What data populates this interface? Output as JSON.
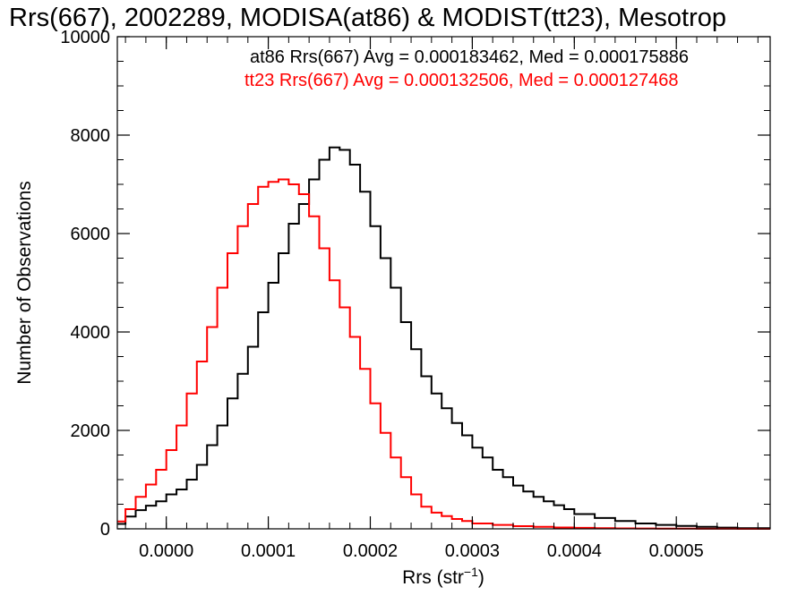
{
  "chart_data": {
    "type": "line",
    "title": "Rrs(667), 2002289, MODISA(at86) & MODIST(tt23), Mesotrop",
    "xlabel": "Rrs (str",
    "xlabel_sup": "−1",
    "xlabel_close": ")",
    "ylabel": "Number of Observations",
    "xlim": [
      -4.8e-05,
      0.000592
    ],
    "ylim": [
      0,
      10000
    ],
    "x_ticks": [
      0.0,
      0.0001,
      0.0002,
      0.0003,
      0.0004,
      0.0005
    ],
    "x_tick_labels": [
      "0.0000",
      "0.0001",
      "0.0002",
      "0.0003",
      "0.0004",
      "0.0005"
    ],
    "y_ticks": [
      0,
      2000,
      4000,
      6000,
      8000,
      10000
    ],
    "y_tick_labels": [
      "0",
      "2000",
      "4000",
      "6000",
      "8000",
      "10000"
    ],
    "grid": false,
    "legend": "top-right text annotations",
    "annotations": [
      {
        "text": "at86 Rrs(667) Avg = 0.000183462, Med = 0.000175886",
        "color": "#000000"
      },
      {
        "text": "tt23 Rrs(667) Avg = 0.000132506, Med = 0.000127468",
        "color": "#ff0000"
      }
    ],
    "series": [
      {
        "color": "#000000",
        "x": [
          -4e-05,
          -3e-05,
          -2e-05,
          -1e-05,
          0.0,
          1e-05,
          2e-05,
          3e-05,
          4e-05,
          5e-05,
          6e-05,
          7e-05,
          8e-05,
          9e-05,
          0.0001,
          0.00011,
          0.00012,
          0.00013,
          0.00014,
          0.00015,
          0.00016,
          0.00017,
          0.00018,
          0.00019,
          0.0002,
          0.00021,
          0.00022,
          0.00023,
          0.00024,
          0.00025,
          0.00026,
          0.00027,
          0.00028,
          0.00029,
          0.0003,
          0.00031,
          0.00032,
          0.00033,
          0.00034,
          0.00035,
          0.00036,
          0.00037,
          0.00038,
          0.00039,
          0.0004,
          0.00042,
          0.00044,
          0.00046,
          0.00048,
          0.0005,
          0.00052,
          0.00054,
          0.00056,
          0.00059
        ],
        "y": [
          100,
          250,
          380,
          470,
          560,
          700,
          800,
          1000,
          1300,
          1700,
          2100,
          2650,
          3150,
          3700,
          4400,
          5000,
          5600,
          6200,
          6600,
          7100,
          7500,
          7750,
          7700,
          7400,
          6850,
          6150,
          5500,
          4900,
          4200,
          3650,
          3100,
          2750,
          2450,
          2150,
          1900,
          1650,
          1450,
          1200,
          1050,
          880,
          760,
          650,
          560,
          480,
          400,
          300,
          220,
          160,
          110,
          80,
          60,
          40,
          25,
          15
        ]
      },
      {
        "color": "#ff0000",
        "x": [
          -4e-05,
          -3e-05,
          -2e-05,
          -1e-05,
          0.0,
          1e-05,
          2e-05,
          3e-05,
          4e-05,
          5e-05,
          6e-05,
          7e-05,
          8e-05,
          9e-05,
          0.0001,
          0.00011,
          0.00012,
          0.00013,
          0.00014,
          0.00015,
          0.00016,
          0.00017,
          0.00018,
          0.00019,
          0.0002,
          0.00021,
          0.00022,
          0.00023,
          0.00024,
          0.00025,
          0.00026,
          0.00027,
          0.00028,
          0.00029,
          0.0003,
          0.00032,
          0.00034,
          0.00036,
          0.00038,
          0.0004,
          0.00042,
          0.00044,
          0.00046,
          0.00048,
          0.0005,
          0.00052,
          0.00054,
          0.00056,
          0.00059
        ],
        "y": [
          150,
          400,
          650,
          900,
          1200,
          1600,
          2100,
          2750,
          3400,
          4100,
          4900,
          5600,
          6150,
          6600,
          6950,
          7050,
          7100,
          7000,
          6800,
          6350,
          5700,
          5050,
          4500,
          3900,
          3250,
          2550,
          1950,
          1450,
          1050,
          700,
          450,
          330,
          260,
          200,
          160,
          110,
          80,
          55,
          40,
          28,
          20,
          14,
          10,
          7,
          5,
          3,
          2,
          1,
          0
        ]
      }
    ]
  }
}
